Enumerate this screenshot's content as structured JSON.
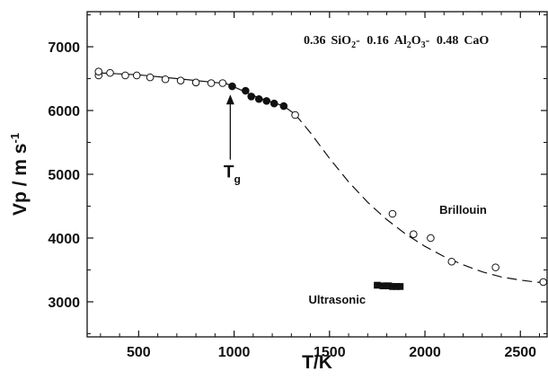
{
  "chart_data": {
    "type": "scatter",
    "title": "",
    "composition": {
      "parts": [
        {
          "coef": "0.36",
          "base": "SiO",
          "sub": "2",
          "suffix": "-"
        },
        {
          "coef": "0.16",
          "base": "Al",
          "sub": "2",
          "base2": "O",
          "sub2": "3",
          "suffix": "-"
        },
        {
          "coef": "0.48",
          "base": "CaO"
        }
      ]
    },
    "xlabel": "T/K",
    "ylabel": {
      "main": "Vp / m s",
      "sup": "-1"
    },
    "xlim": [
      230,
      2640
    ],
    "ylim": [
      2450,
      7550
    ],
    "xticks": [
      "500",
      "1000",
      "1500",
      "2000",
      "2500"
    ],
    "yticks": [
      "3000",
      "4000",
      "5000",
      "6000",
      "7000"
    ],
    "grid": false,
    "annotations": {
      "tg": {
        "main": "T",
        "sub": "g",
        "arrow_from": [
          980,
          5230
        ],
        "arrow_to": [
          980,
          6250
        ]
      },
      "brillouin": {
        "text": "Brillouin",
        "at": [
          2200,
          4380
        ]
      },
      "ultrasonic": {
        "text": "Ultrasonic",
        "at": [
          1540,
          2970
        ]
      }
    },
    "series": [
      {
        "marker": "open-circle",
        "points": [
          [
            290,
            6550
          ],
          [
            290,
            6610
          ],
          [
            350,
            6590
          ],
          [
            430,
            6550
          ],
          [
            490,
            6550
          ],
          [
            560,
            6520
          ],
          [
            640,
            6490
          ],
          [
            720,
            6470
          ],
          [
            800,
            6440
          ],
          [
            880,
            6430
          ],
          [
            940,
            6430
          ],
          [
            1320,
            5930
          ],
          [
            1830,
            4380
          ],
          [
            1940,
            4060
          ],
          [
            2030,
            4000
          ],
          [
            2140,
            3630
          ],
          [
            2370,
            3540
          ],
          [
            2620,
            3310
          ]
        ]
      },
      {
        "marker": "filled-circle",
        "points": [
          [
            990,
            6380
          ],
          [
            1060,
            6310
          ],
          [
            1090,
            6220
          ],
          [
            1130,
            6180
          ],
          [
            1170,
            6150
          ],
          [
            1210,
            6110
          ],
          [
            1260,
            6070
          ]
        ]
      },
      {
        "marker": "filled-square",
        "points": [
          [
            1750,
            3260
          ],
          [
            1780,
            3250
          ],
          [
            1800,
            3250
          ],
          [
            1810,
            3250
          ],
          [
            1830,
            3240
          ],
          [
            1850,
            3240
          ],
          [
            1870,
            3240
          ]
        ]
      }
    ],
    "fit_solid": [
      [
        290,
        6590
      ],
      [
        500,
        6560
      ],
      [
        700,
        6500
      ],
      [
        900,
        6440
      ],
      [
        960,
        6420
      ],
      [
        1000,
        6370
      ],
      [
        1060,
        6290
      ],
      [
        1120,
        6210
      ],
      [
        1200,
        6130
      ],
      [
        1260,
        6070
      ],
      [
        1320,
        5940
      ]
    ],
    "fit_dashed": [
      [
        1320,
        5940
      ],
      [
        1400,
        5650
      ],
      [
        1500,
        5250
      ],
      [
        1600,
        4880
      ],
      [
        1700,
        4560
      ],
      [
        1800,
        4290
      ],
      [
        1900,
        4060
      ],
      [
        2000,
        3870
      ],
      [
        2100,
        3710
      ],
      [
        2200,
        3580
      ],
      [
        2300,
        3470
      ],
      [
        2400,
        3390
      ],
      [
        2500,
        3340
      ],
      [
        2580,
        3310
      ],
      [
        2630,
        3300
      ]
    ]
  }
}
